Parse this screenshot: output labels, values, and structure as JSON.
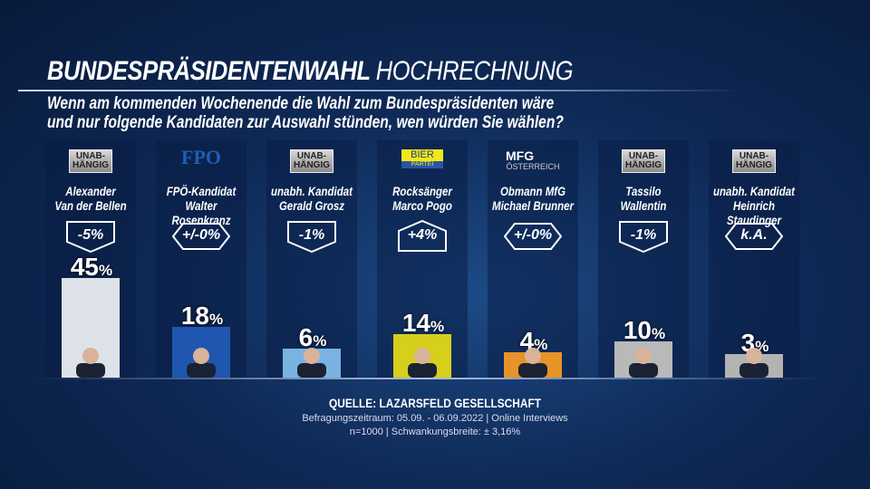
{
  "header": {
    "title_bold": "BUNDESPRÄSIDENTENWAHL",
    "title_light": "HOCHRECHNUNG",
    "question_line1": "Wenn am kommenden Wochenende die Wahl zum Bundespräsidenten wäre",
    "question_line2": "und nur folgende Kandidaten zur Auswahl stünden, wen würden Sie wählen?"
  },
  "chart_data": {
    "type": "bar",
    "categories": [
      "Alexander Van der Bellen",
      "FPÖ-Kandidat Walter Rosenkranz",
      "unabh. Kandidat Gerald Grosz",
      "Rocksänger Marco Pogo",
      "Obmann MfG Michael Brunner",
      "Tassilo Wallentin",
      "unabh. Kandidat Heinrich Staudinger"
    ],
    "values": [
      45,
      18,
      6,
      14,
      4,
      10,
      3
    ],
    "unit": "%",
    "candidates": [
      {
        "line1": "Alexander",
        "line2": "Van der Bellen",
        "logo": "unab",
        "logo_text1": "UNAB-",
        "logo_text2": "HÄNGIG",
        "change": "-5%",
        "shape": "down",
        "color": "#dde2e8"
      },
      {
        "line1": "FPÖ-Kandidat",
        "line2": "Walter Rosenkranz",
        "logo": "fpo",
        "logo_text1": "FPÖ",
        "change": "+/-0%",
        "shape": "hex",
        "color": "#1f56b0"
      },
      {
        "line1": "unabh. Kandidat",
        "line2": "Gerald Grosz",
        "logo": "unab",
        "logo_text1": "UNAB-",
        "logo_text2": "HÄNGIG",
        "change": "-1%",
        "shape": "down",
        "color": "#7ab3e2"
      },
      {
        "line1": "Rocksänger",
        "line2": "Marco Pogo",
        "logo": "bier",
        "logo_text1": "BIER",
        "logo_text2": "PARTEI",
        "change": "+4%",
        "shape": "up",
        "color": "#d6cf1c"
      },
      {
        "line1": "Obmann MfG",
        "line2": "Michael Brunner",
        "logo": "mfg",
        "logo_text1": "MFG",
        "logo_text2": "ÖSTERREICH",
        "change": "+/-0%",
        "shape": "hex",
        "color": "#e69328"
      },
      {
        "line1": "Tassilo",
        "line2": "Wallentin",
        "logo": "unab",
        "logo_text1": "UNAB-",
        "logo_text2": "HÄNGIG",
        "change": "-1%",
        "shape": "down",
        "color": "#b9b9b9"
      },
      {
        "line1": "unabh. Kandidat",
        "line2": "Heinrich Staudinger",
        "logo": "unab",
        "logo_text1": "UNAB-",
        "logo_text2": "HÄNGIG",
        "change": "k.A.",
        "shape": "hex",
        "color": "#b3b3b3"
      }
    ]
  },
  "source": {
    "line1": "QUELLE:  LAZARSFELD GESELLSCHAFT",
    "line2": "Befragungszeitraum: 05.09. - 06.09.2022 | Online Interviews",
    "line3": "n=1000 |  Schwankungsbreite: ± 3,16%"
  }
}
